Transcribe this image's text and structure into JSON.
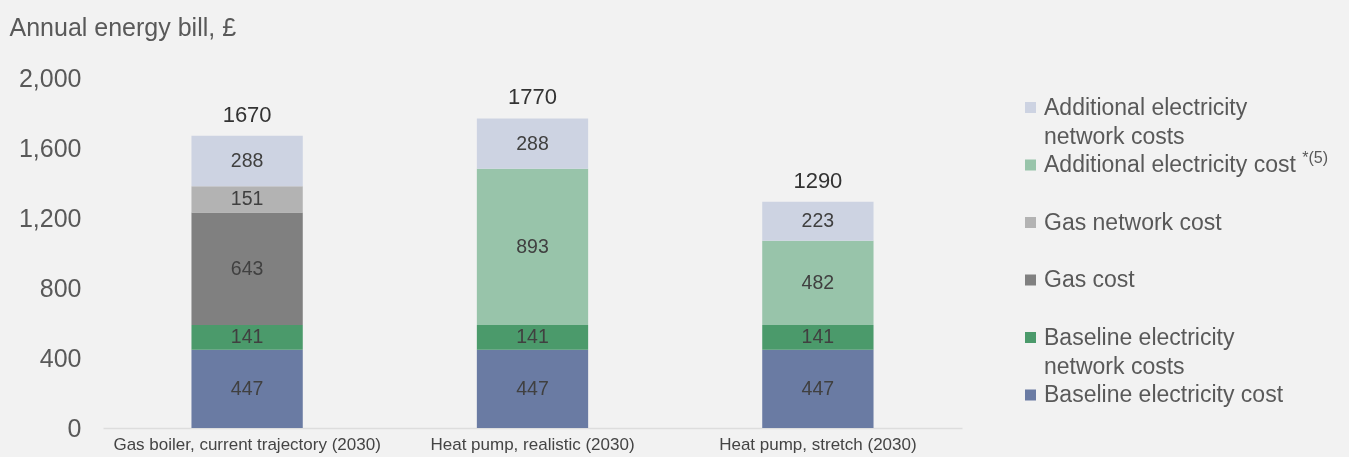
{
  "chart_data": {
    "type": "bar",
    "ylabel": "Annual energy bill, £",
    "categories": [
      "Gas boiler, current trajectory (2030)",
      "Heat pump, realistic (2030)",
      "Heat pump, stretch (2030)"
    ],
    "stacked": true,
    "series": [
      {
        "name": "Baseline electricity cost",
        "color": "#6a7ba3",
        "values": [
          447,
          447,
          447
        ]
      },
      {
        "name": "Baseline electricity network costs",
        "color": "#4b9a6b",
        "values": [
          141,
          141,
          141
        ]
      },
      {
        "name": "Gas cost",
        "color": "#808080",
        "values": [
          643,
          null,
          null
        ]
      },
      {
        "name": "Gas network cost",
        "color": "#b3b3b3",
        "values": [
          151,
          null,
          null
        ]
      },
      {
        "name": "Additional electricity cost $^{*(5)}$",
        "color": "#98c4aa",
        "values": [
          null,
          893,
          482
        ]
      },
      {
        "name": "Additional electricity network costs",
        "color": "#cdd3e2",
        "values": [
          288,
          288,
          223
        ]
      }
    ],
    "ylim": [
      0,
      2000
    ],
    "yticks": [
      0,
      400,
      800,
      {
        "value": 1200,
        "label": "1,200"
      },
      {
        "value": 1600,
        "label": "1,600"
      },
      {
        "value": 2000,
        "label": "2,000"
      }
    ],
    "data_labels": true,
    "totals": [
      "1670",
      "1770",
      "1290"
    ],
    "legend": "right"
  }
}
